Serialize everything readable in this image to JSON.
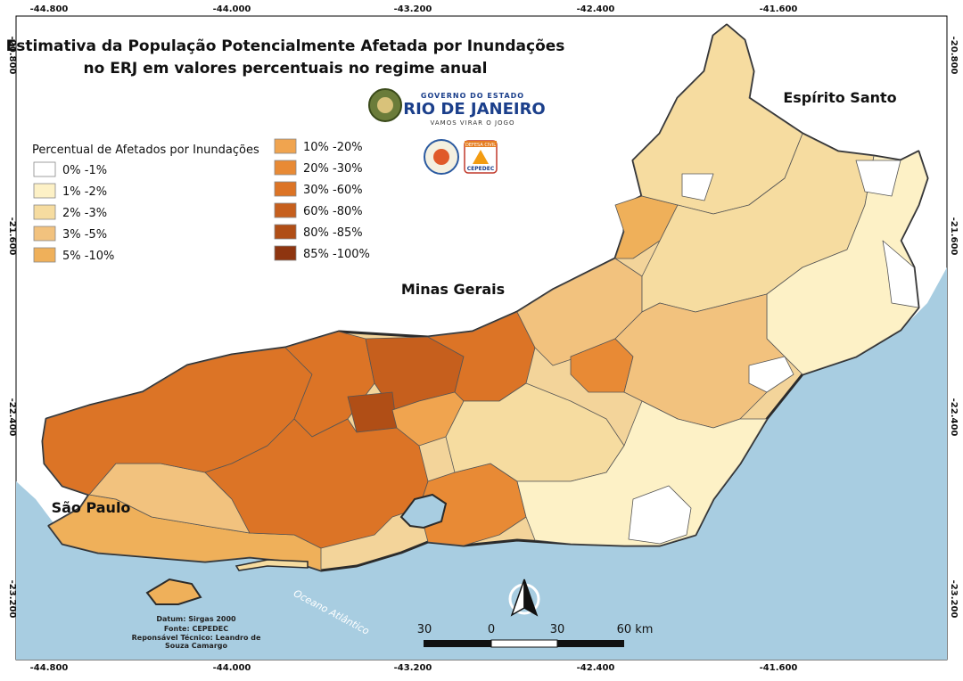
{
  "title_line1": "Estimativa da População Potencialmente Afetada por Inundações",
  "title_line2": "no ERJ em valores percentuais no regime anual",
  "logo": {
    "line1": "GOVERNO DO ESTADO",
    "line2": "RIO DE JANEIRO",
    "line3": "VAMOS VIRAR O JOGO",
    "cepedec": "CEPEDEC",
    "defesa": "DEFESA CIVIL"
  },
  "legend": {
    "title": "Percentual de Afetados por Inundações",
    "classes": [
      {
        "label": "0% -1%",
        "color": "#ffffff"
      },
      {
        "label": "1% -2%",
        "color": "#fdf1c6"
      },
      {
        "label": "2% -3%",
        "color": "#f6dca0"
      },
      {
        "label": "3% -5%",
        "color": "#f2c27e"
      },
      {
        "label": "5% -10%",
        "color": "#efb05a"
      },
      {
        "label": "10% -20%",
        "color": "#f0a44f"
      },
      {
        "label": "20% -30%",
        "color": "#e88a35"
      },
      {
        "label": "30% -60%",
        "color": "#dc7426"
      },
      {
        "label": "60% -80%",
        "color": "#c65f1d"
      },
      {
        "label": "80% -85%",
        "color": "#b04e16"
      },
      {
        "label": "85% -100%",
        "color": "#8e3510"
      }
    ]
  },
  "states": {
    "es": "Espírito Santo",
    "mg": "Minas Gerais",
    "sp": "São Paulo"
  },
  "ocean": "Oceano Atlântico",
  "coords": {
    "top": [
      "-44.800",
      "-44.000",
      "-43.200",
      "-42.400",
      "-41.600"
    ],
    "bottom": [
      "-44.800",
      "-44.000",
      "-43.200",
      "-42.400",
      "-41.600"
    ],
    "left": [
      "-20.800",
      "-21.600",
      "-22.400",
      "-23.200"
    ],
    "right": [
      "-20.800",
      "-21.600",
      "-22.400",
      "-23.200"
    ]
  },
  "credits": {
    "datum": "Datum: Sirgas 2000",
    "fonte": "Fonte: CEPEDEC",
    "resp1": "Reponsável Técnico: Leandro de",
    "resp2": "Souza Camargo"
  },
  "scale_labels": [
    "30",
    "0",
    "30",
    "60 km"
  ],
  "colors": {
    "ocean": "#a8cde1",
    "neighbor": "#ffffff",
    "border": "#333333"
  }
}
